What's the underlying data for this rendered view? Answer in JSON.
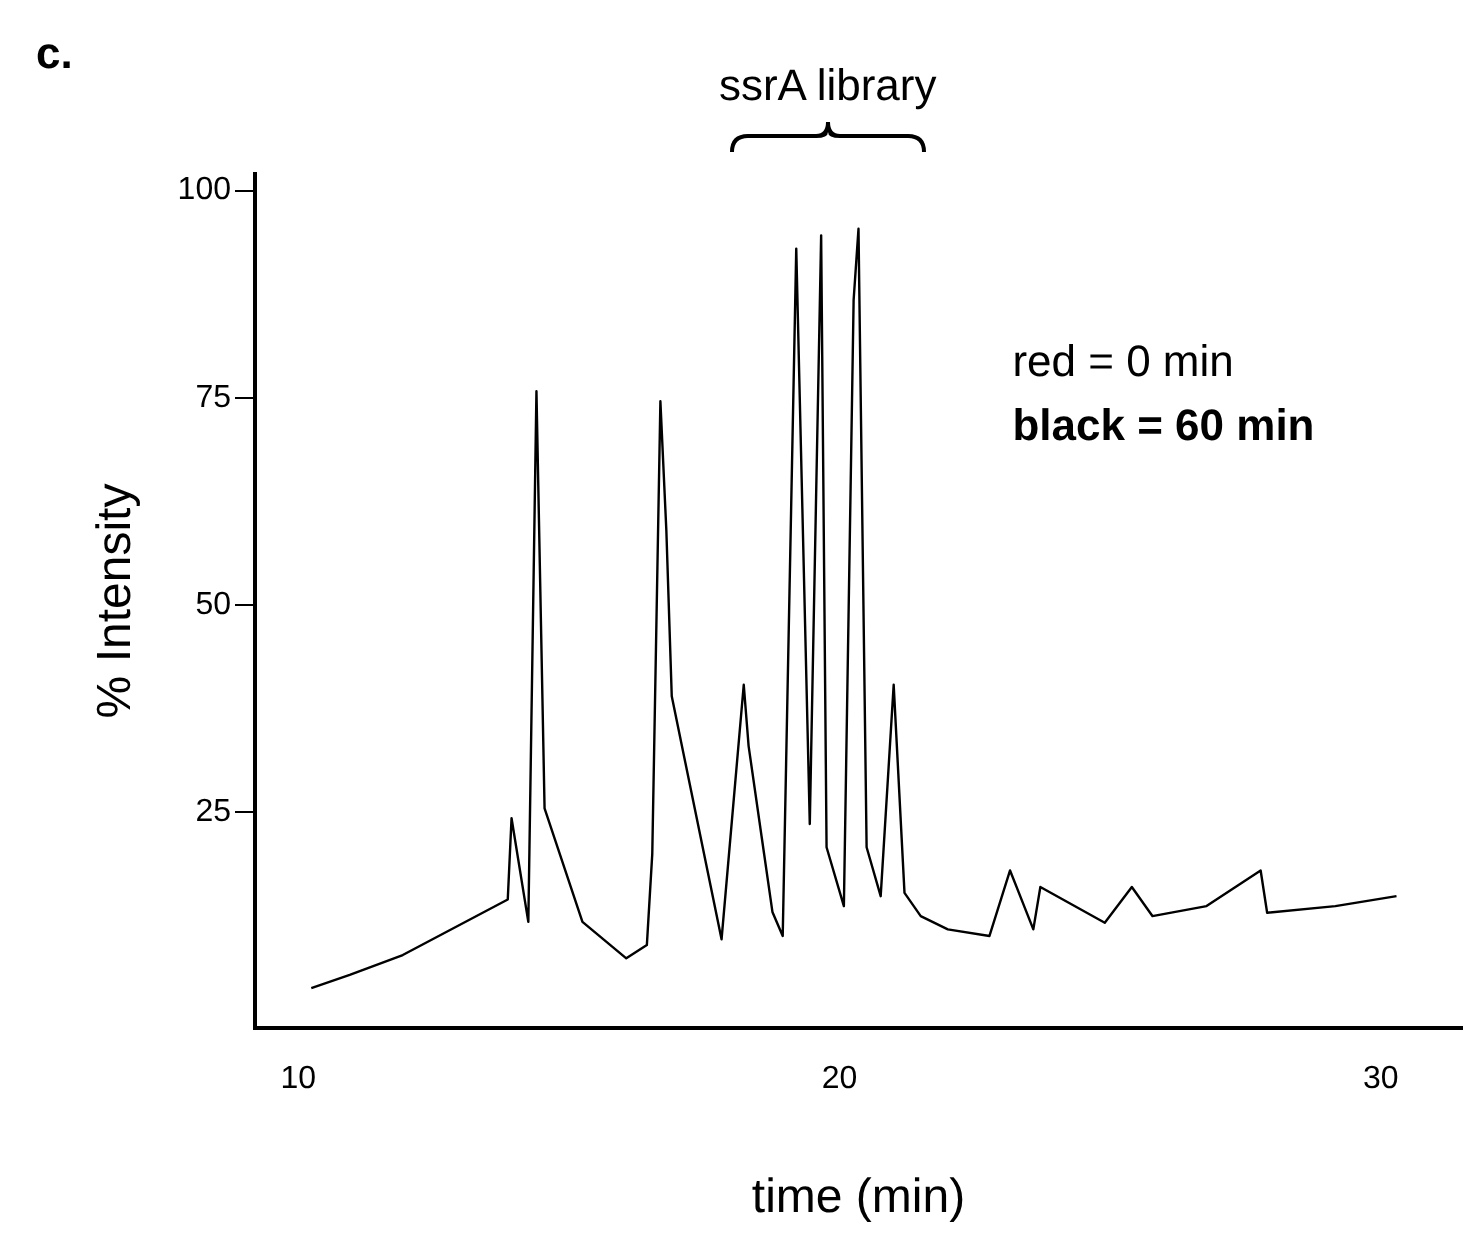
{
  "chart_data": {
    "type": "line",
    "title": "c.",
    "xlabel": "time (min)",
    "ylabel": "% Intensity",
    "annotations": [
      "ssrA library",
      "red = 0 min",
      "black = 60 min"
    ],
    "xlim": [
      9.2,
      31.5
    ],
    "xticks": [
      10,
      20,
      30
    ],
    "ylim": [
      -1,
      102
    ],
    "yticks": [
      25,
      50,
      75,
      100
    ],
    "grid": false,
    "legend": false,
    "marker": "none",
    "line_style": "solid",
    "series": [
      {
        "color": "#000000",
        "x": [
          10.24,
          10.95,
          11.93,
          13.87,
          13.94,
          14.25,
          14.4,
          14.55,
          15.25,
          16.06,
          16.44,
          16.54,
          16.69,
          16.8,
          16.9,
          17.82,
          18.23,
          18.32,
          18.76,
          18.95,
          19.2,
          19.45,
          19.66,
          19.76,
          20.08,
          20.26,
          20.35,
          20.5,
          20.76,
          21.0,
          21.2,
          21.5,
          22.0,
          22.77,
          23.15,
          23.58,
          23.71,
          24.9,
          25.4,
          25.78,
          26.78,
          27.78,
          27.9,
          29.16,
          30.29
        ],
        "values": [
          3.8,
          5.4,
          7.8,
          14.5,
          24.3,
          11.8,
          75.8,
          25.5,
          11.8,
          7.4,
          9.0,
          20,
          74.6,
          59,
          39,
          9.7,
          40.4,
          33,
          13,
          10.1,
          93,
          23.6,
          94.6,
          20.8,
          13.7,
          86.8,
          95.4,
          20.8,
          14.9,
          40.4,
          15.3,
          12.5,
          10.9,
          10.1,
          18,
          10.9,
          16,
          11.7,
          16,
          12.5,
          13.7,
          18,
          12.9,
          13.7,
          14.9
        ]
      }
    ]
  }
}
